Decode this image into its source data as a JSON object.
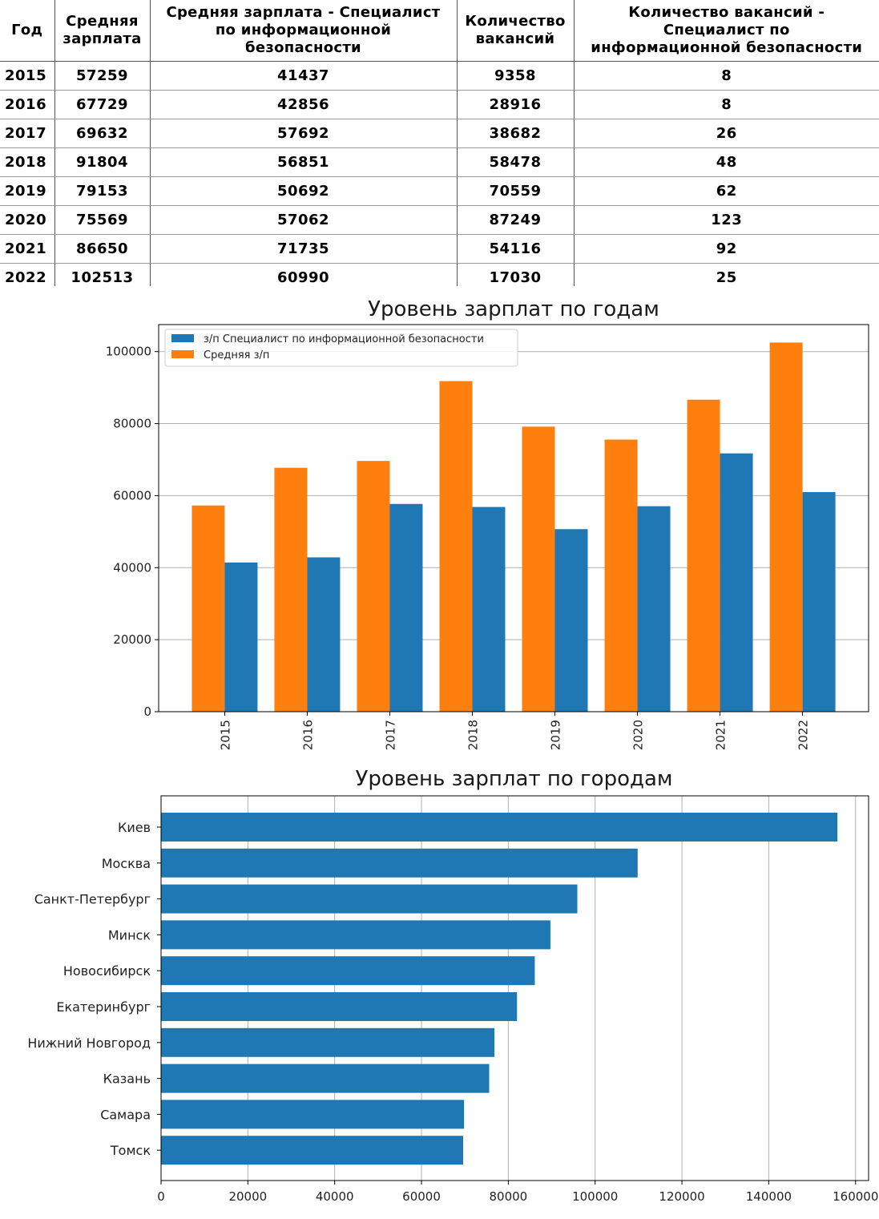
{
  "table": {
    "headers": [
      [
        "Год"
      ],
      [
        "Средняя",
        "зарплата"
      ],
      [
        "Средняя зарплата - Специалист",
        "по информационной",
        "безопасности"
      ],
      [
        "Количество",
        "вакансий"
      ],
      [
        "Количество вакансий -",
        "Специалист по",
        "информационной безопасности"
      ]
    ],
    "rows": [
      [
        "2015",
        "57259",
        "41437",
        "9358",
        "8"
      ],
      [
        "2016",
        "67729",
        "42856",
        "28916",
        "8"
      ],
      [
        "2017",
        "69632",
        "57692",
        "38682",
        "26"
      ],
      [
        "2018",
        "91804",
        "56851",
        "58478",
        "48"
      ],
      [
        "2019",
        "79153",
        "50692",
        "70559",
        "62"
      ],
      [
        "2020",
        "75569",
        "57062",
        "87249",
        "123"
      ],
      [
        "2021",
        "86650",
        "71735",
        "54116",
        "92"
      ],
      [
        "2022",
        "102513",
        "60990",
        "17030",
        "25"
      ]
    ]
  },
  "chart_data": [
    {
      "type": "bar",
      "title": "Уровень зарплат по годам",
      "categories": [
        "2015",
        "2016",
        "2017",
        "2018",
        "2019",
        "2020",
        "2021",
        "2022"
      ],
      "series": [
        {
          "name": "Средняя з/п",
          "color": "#ff7f0e",
          "values": [
            57259,
            67729,
            69632,
            91804,
            79153,
            75569,
            86650,
            102513
          ]
        },
        {
          "name": "з/п Специалист по информационной безопасности",
          "color": "#1f77b4",
          "values": [
            41437,
            42856,
            57692,
            56851,
            50692,
            57062,
            71735,
            60990
          ]
        }
      ],
      "legend_order": [
        "з/п Специалист по информационной безопасности",
        "Средняя з/п"
      ],
      "legend_position": "top-left",
      "ylim": [
        0,
        107500
      ],
      "yticks": [
        0,
        20000,
        40000,
        60000,
        80000,
        100000
      ],
      "grid": "y",
      "xtick_rotation": 90
    },
    {
      "type": "bar",
      "orientation": "horizontal",
      "title": "Уровень зарплат по городам",
      "categories": [
        "Киев",
        "Москва",
        "Санкт-Петербург",
        "Минск",
        "Новосибирск",
        "Екатеринбург",
        "Нижний Новгород",
        "Казань",
        "Самара",
        "Томск"
      ],
      "values": [
        155800,
        109800,
        95900,
        89700,
        86100,
        82000,
        76800,
        75600,
        69800,
        69600
      ],
      "color": "#1f77b4",
      "xlim": [
        0,
        163000
      ],
      "xticks": [
        0,
        20000,
        40000,
        60000,
        80000,
        100000,
        120000,
        140000,
        160000
      ],
      "grid": "x"
    }
  ]
}
